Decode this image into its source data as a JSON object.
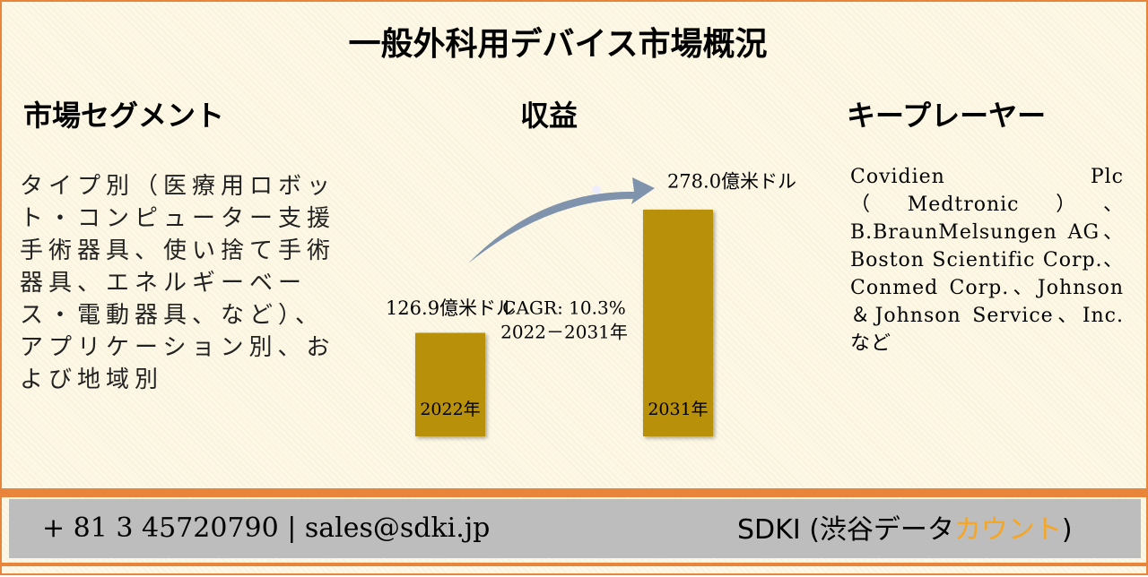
{
  "header": {
    "title": "一般外科用デバイス市場概況"
  },
  "segments": {
    "heading": "市場セグメント",
    "text": "タイプ別（医療用ロボット・コンピューター支援手術器具、使い捨て手術器具、エネルギーベース・電動器具、など）、アプリケーション別、および地域別"
  },
  "revenue": {
    "heading": "収益",
    "cagr": "CAGR: 10.3%",
    "period": "2022－2031年"
  },
  "chart_data": {
    "type": "bar",
    "categories": [
      "2022年",
      "2031年"
    ],
    "values": [
      126.9,
      278.0
    ],
    "value_labels": [
      "126.9億米ドル",
      "278.0億米ドル"
    ],
    "color": "#b8900a"
  },
  "players": {
    "heading": "キープレーヤー",
    "text": "Covidien Plc（Medtronic）、B.BraunMelsungen AG、Boston Scientific Corp.、Conmed Corp.、Johnson ＆Johnson Service、Inc.など"
  },
  "footer": {
    "contact": "+ 81 3 45720790 | sales@sdki.jp",
    "brand_start": "SDKI (渋谷データ",
    "brand_accent": "カウント",
    "brand_end": ")"
  }
}
